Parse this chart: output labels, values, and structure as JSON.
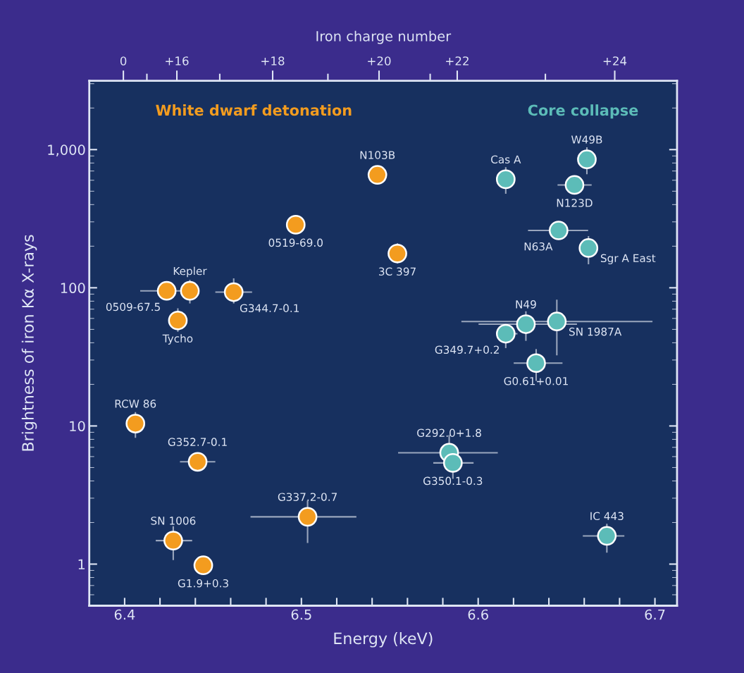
{
  "chart_data": {
    "type": "scatter",
    "xlabel": "Energy (keV)",
    "ylabel": "Brightness of iron Kα X-rays",
    "x2label": "Iron charge number",
    "xlim": [
      6.38,
      6.7125
    ],
    "ylim": [
      0.5,
      3150
    ],
    "log": "y",
    "grid": false,
    "legend": false,
    "marker": "circle",
    "xticks": [
      6.4,
      {
        "value": 6.42,
        "label": null
      },
      {
        "value": 6.44,
        "label": null
      },
      {
        "value": 6.46,
        "label": null
      },
      {
        "value": 6.48,
        "label": null
      },
      6.5,
      {
        "value": 6.52,
        "label": null
      },
      {
        "value": 6.54,
        "label": null
      },
      {
        "value": 6.56,
        "label": null
      },
      {
        "value": 6.58,
        "label": null
      },
      6.6,
      {
        "value": 6.62,
        "label": null
      },
      {
        "value": 6.64,
        "label": null
      },
      {
        "value": 6.66,
        "label": null
      },
      {
        "value": 6.68,
        "label": null
      },
      6.7
    ],
    "yticks": [
      1,
      10,
      {
        "value": 100,
        "label": "100"
      },
      {
        "value": 1000,
        "label": "1,000"
      }
    ],
    "series": [
      {
        "name": "White dwarf detonation",
        "color": "#f39c1f",
        "x": [
          6.543,
          6.4968,
          6.5543,
          6.4238,
          6.4369,
          6.4617,
          6.4301,
          6.4061,
          6.4413,
          6.5035,
          6.4275,
          6.4445
        ],
        "values": [
          656,
          286,
          177,
          95,
          95,
          93,
          58,
          10.4,
          5.5,
          2.2,
          1.48,
          0.98
        ],
        "xerrors": [
          null,
          0.004,
          null,
          0.015,
          null,
          0.0104,
          null,
          null,
          0.01,
          [
            6.4712,
            6.5311
          ],
          [
            6.4176,
            6.4382
          ],
          null
        ],
        "errors": [
          null,
          null,
          [
            150,
            210
          ],
          null,
          [
            77,
            114
          ],
          [
            77,
            117
          ],
          [
            48,
            71
          ],
          [
            8.2,
            12.6
          ],
          null,
          [
            1.42,
            2.88
          ],
          [
            1.07,
            1.88
          ],
          null
        ]
      },
      {
        "name": "Core collapse",
        "color": "#5cbcb8",
        "x": [
          6.6156,
          6.6615,
          6.6545,
          6.6455,
          6.6624,
          6.627,
          6.6445,
          6.6156,
          6.6328,
          6.5836,
          6.5857,
          6.6728
        ],
        "values": [
          610,
          849,
          555,
          260,
          194,
          54.5,
          57,
          46.5,
          28.5,
          6.4,
          5.4,
          1.6
        ],
        "xerrors": [
          null,
          null,
          [
            6.6449,
            6.6642
          ],
          [
            6.6282,
            6.6622
          ],
          null,
          [
            6.6002,
            6.6559
          ],
          [
            6.5905,
            6.6986
          ],
          [
            6.6105,
            6.6222
          ],
          [
            6.6201,
            6.6477
          ],
          [
            6.5547,
            6.6111
          ],
          [
            6.5746,
            6.5974
          ],
          [
            6.6592,
            6.6827
          ]
        ],
        "errors": [
          [
            479,
            746
          ],
          [
            664,
            1039
          ],
          null,
          null,
          [
            148,
            237
          ],
          [
            41.3,
            67.6
          ],
          [
            32.4,
            82
          ],
          [
            36.6,
            53.7
          ],
          [
            21.2,
            36
          ],
          [
            6.4,
            8.6
          ],
          [
            4.14,
            6.07
          ],
          [
            1.21,
            1.96
          ]
        ]
      }
    ],
    "annotations": [
      {
        "text": "N103B",
        "x": 6.543,
        "y": 656
      },
      {
        "text": "0519-69.0",
        "x": 6.4968,
        "y": 286
      },
      {
        "text": "3C 397",
        "x": 6.5543,
        "y": 177
      },
      {
        "text": "0509-67.5",
        "x": 6.4238,
        "y": 95
      },
      {
        "text": "Kepler",
        "x": 6.4369,
        "y": 95
      },
      {
        "text": "G344.7-0.1",
        "x": 6.4617,
        "y": 93
      },
      {
        "text": "Tycho",
        "x": 6.4301,
        "y": 58
      },
      {
        "text": "RCW 86",
        "x": 6.4061,
        "y": 10.4
      },
      {
        "text": "G352.7-0.1",
        "x": 6.4413,
        "y": 5.5
      },
      {
        "text": "G337.2-0.7",
        "x": 6.5035,
        "y": 2.2
      },
      {
        "text": "SN 1006",
        "x": 6.4275,
        "y": 1.48
      },
      {
        "text": "G1.9+0.3",
        "x": 6.4445,
        "y": 0.98
      },
      {
        "text": "Cas A",
        "x": 6.6156,
        "y": 610
      },
      {
        "text": "W49B",
        "x": 6.6615,
        "y": 849
      },
      {
        "text": "N123D",
        "x": 6.6545,
        "y": 555
      },
      {
        "text": "N63A",
        "x": 6.6455,
        "y": 260
      },
      {
        "text": "Sgr A East",
        "x": 6.6624,
        "y": 194
      },
      {
        "text": "N49",
        "x": 6.627,
        "y": 54.5
      },
      {
        "text": "SN 1987A",
        "x": 6.6445,
        "y": 57
      },
      {
        "text": "G349.7+0.2",
        "x": 6.6156,
        "y": 46.5
      },
      {
        "text": "G0.61+0.01",
        "x": 6.6328,
        "y": 28.5
      },
      {
        "text": "G292.0+1.8",
        "x": 6.5836,
        "y": 6.4
      },
      {
        "text": "G350.1-0.3",
        "x": 6.5857,
        "y": 5.4
      },
      {
        "text": "IC 443",
        "x": 6.6728,
        "y": 1.6
      },
      "0",
      "+16",
      "+18",
      "+20",
      "+22",
      "+24"
    ]
  }
}
